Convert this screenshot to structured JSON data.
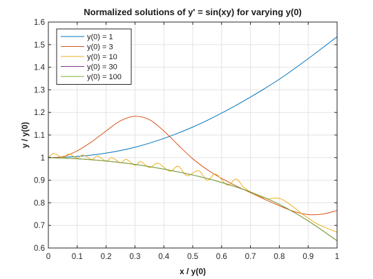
{
  "chart_data": {
    "type": "line",
    "title": "Normalized solutions of y' = sin(xy) for varying y(0)",
    "xlabel": "x / y(0)",
    "ylabel": "y / y(0)",
    "xlim": [
      0,
      1
    ],
    "ylim": [
      0.6,
      1.6
    ],
    "xticks": [
      "0",
      "0.1",
      "0.2",
      "0.3",
      "0.4",
      "0.5",
      "0.6",
      "0.7",
      "0.8",
      "0.9",
      "1"
    ],
    "yticks": [
      "0.6",
      "0.7",
      "0.8",
      "0.9",
      "1",
      "1.1",
      "1.2",
      "1.3",
      "1.4",
      "1.5",
      "1.6"
    ],
    "grid": true,
    "legend_position": "top-left",
    "series": [
      {
        "name": "y(0) = 1",
        "color": "#0072BD",
        "x": [
          0,
          0.1,
          0.2,
          0.3,
          0.4,
          0.5,
          0.6,
          0.7,
          0.8,
          0.9,
          1.0
        ],
        "y": [
          1.0,
          1.005,
          1.02,
          1.046,
          1.085,
          1.135,
          1.197,
          1.268,
          1.347,
          1.438,
          1.535
        ]
      },
      {
        "name": "y(0) = 3",
        "color": "#D95319",
        "x": [
          0,
          0.05,
          0.1,
          0.15,
          0.2,
          0.25,
          0.3,
          0.35,
          0.4,
          0.45,
          0.5,
          0.55,
          0.6,
          0.65,
          0.7,
          0.75,
          0.8,
          0.85,
          0.9,
          0.95,
          1.0
        ],
        "y": [
          1.0,
          1.004,
          1.03,
          1.07,
          1.118,
          1.163,
          1.183,
          1.168,
          1.118,
          1.055,
          0.995,
          0.947,
          0.908,
          0.875,
          0.845,
          0.815,
          0.787,
          0.762,
          0.748,
          0.75,
          0.766
        ]
      },
      {
        "name": "y(0) = 10",
        "color": "#EDB120",
        "x": [
          0,
          0.02,
          0.05,
          0.07,
          0.1,
          0.12,
          0.15,
          0.17,
          0.2,
          0.22,
          0.25,
          0.27,
          0.3,
          0.32,
          0.35,
          0.38,
          0.42,
          0.45,
          0.48,
          0.52,
          0.55,
          0.58,
          0.62,
          0.65,
          0.68,
          0.72,
          0.76,
          0.8,
          0.84,
          0.88,
          0.92,
          0.96,
          1.0
        ],
        "y": [
          1.0,
          1.018,
          1.0,
          1.016,
          0.998,
          1.012,
          0.992,
          1.007,
          0.985,
          1.0,
          0.977,
          0.992,
          0.966,
          0.983,
          0.956,
          0.975,
          0.94,
          0.962,
          0.92,
          0.942,
          0.9,
          0.927,
          0.878,
          0.905,
          0.865,
          0.835,
          0.818,
          0.82,
          0.79,
          0.75,
          0.715,
          0.69,
          0.67
        ]
      },
      {
        "name": "y(0) = 30",
        "color": "#7E2F8E",
        "x": [
          0,
          0.1,
          0.2,
          0.3,
          0.4,
          0.5,
          0.6,
          0.7,
          0.8,
          0.9,
          1.0
        ],
        "y": [
          1.0,
          0.995,
          0.985,
          0.97,
          0.949,
          0.923,
          0.89,
          0.848,
          0.793,
          0.72,
          0.632
        ]
      },
      {
        "name": "y(0) = 100",
        "color": "#77AC30",
        "x": [
          0,
          0.1,
          0.2,
          0.3,
          0.4,
          0.5,
          0.6,
          0.7,
          0.8,
          0.9,
          1.0
        ],
        "y": [
          1.0,
          0.995,
          0.985,
          0.97,
          0.949,
          0.923,
          0.89,
          0.848,
          0.793,
          0.72,
          0.632
        ]
      }
    ]
  }
}
